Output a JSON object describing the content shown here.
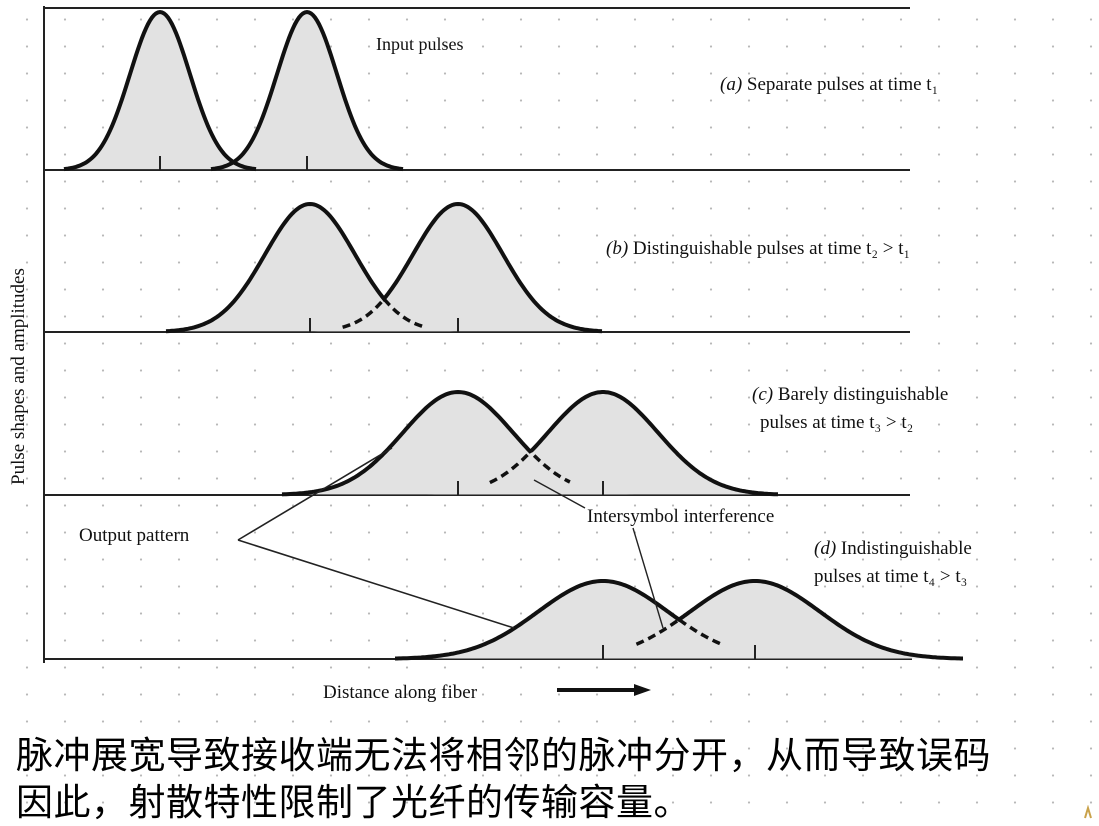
{
  "figure": {
    "y_axis_label": "Pulse shapes and amplitudes",
    "x_axis_label": "Distance along fiber",
    "input_label": "Input pulses",
    "output_label": "Output pattern",
    "isi_label": "Intersymbol interference",
    "panels": [
      {
        "tag": "(a)",
        "lines": [
          "Separate pulses at time t₁"
        ]
      },
      {
        "tag": "(b)",
        "lines": [
          "Distinguishable pulses at time t₂ > t₁"
        ]
      },
      {
        "tag": "(c)",
        "lines": [
          "Barely distinguishable",
          "pulses at time t₃ > t₂"
        ]
      },
      {
        "tag": "(d)",
        "lines": [
          "Indistinguishable",
          "pulses at time t₄ > t₃"
        ]
      }
    ]
  },
  "caption": {
    "line1": "脉冲展宽导致接收端无法将相邻的脉冲分开，从而导致误码",
    "line2": "因此，射散特性限制了光纤的传输容量。"
  }
}
